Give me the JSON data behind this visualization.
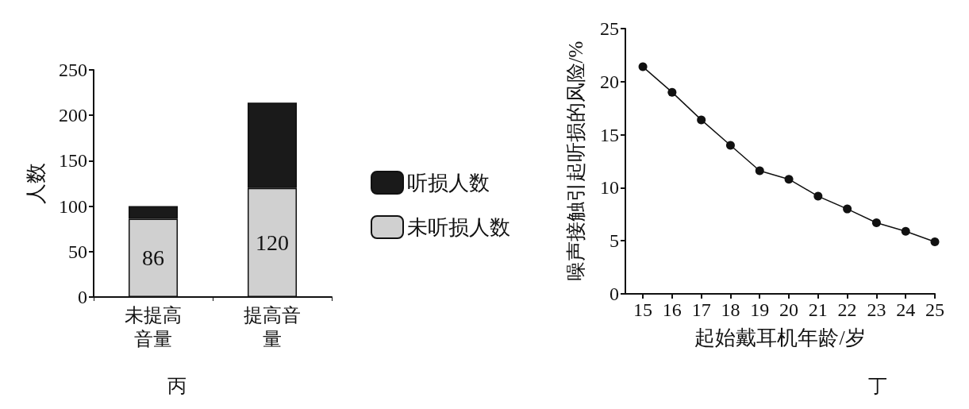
{
  "chart_data": [
    {
      "type": "bar",
      "title": "丙",
      "ylabel": "人数",
      "categories": [
        "未提高音量",
        "提高音量"
      ],
      "stacked": true,
      "ylim": [
        0,
        250
      ],
      "yticks": [
        0,
        50,
        100,
        150,
        200,
        250
      ],
      "grid": false,
      "legend": "right",
      "series": [
        {
          "name": "未听损人数",
          "color": "#d0d0d0",
          "values": [
            86,
            120
          ],
          "value_labels": [
            "86",
            "120"
          ]
        },
        {
          "name": "听损人数",
          "color": "#1a1a1a",
          "values": [
            14,
            94
          ]
        }
      ]
    },
    {
      "type": "line",
      "title": "丁",
      "xlabel": "起始戴耳机年龄/岁",
      "ylabel": "噪声接触引起听损的风险/%",
      "x": [
        15,
        16,
        17,
        18,
        19,
        20,
        21,
        22,
        23,
        24,
        25
      ],
      "xlim": [
        14.4,
        25
      ],
      "xticks": [
        15,
        16,
        17,
        18,
        19,
        20,
        21,
        22,
        23,
        24,
        25
      ],
      "ylim": [
        0,
        25
      ],
      "yticks": [
        0,
        5,
        10,
        15,
        20,
        25
      ],
      "grid": false,
      "marker": "circle",
      "line_style": "solid",
      "series": [
        {
          "color": "#111111",
          "values": [
            21.4,
            19.0,
            16.4,
            14.0,
            11.6,
            10.8,
            9.2,
            8.0,
            6.7,
            5.9,
            4.9
          ]
        }
      ]
    }
  ]
}
